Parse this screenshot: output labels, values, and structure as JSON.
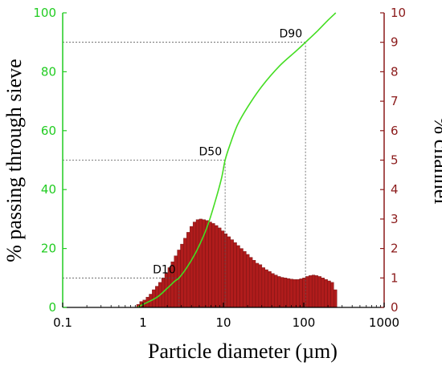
{
  "chart_data": {
    "type": "bar",
    "xlabel": "Particle diameter (µm)",
    "ylabel_left": "% passing through sieve",
    "ylabel_right": "% channel",
    "x_scale": "log",
    "xlim": [
      0.1,
      1000
    ],
    "ylim_left": [
      0,
      100
    ],
    "ylim_right": [
      0,
      10
    ],
    "x_ticks": [
      "0.1",
      "1",
      "10",
      "100",
      "1000"
    ],
    "y_left_ticks": [
      "0",
      "20",
      "40",
      "60",
      "80",
      "100"
    ],
    "y_right_ticks": [
      "0",
      "1",
      "2",
      "3",
      "4",
      "5",
      "6",
      "7",
      "8",
      "9",
      "10"
    ],
    "colors": {
      "left_axis": "#22cc22",
      "right_axis": "#8b1a1a",
      "bars": "#b01c1c",
      "bar_edge": "#6e0f0f",
      "cumulative_line": "#44dd22",
      "ref_lines": "#555555"
    },
    "series": [
      {
        "kind": "bars",
        "axis": "right",
        "x": [
          0.87,
          0.95,
          1.04,
          1.14,
          1.24,
          1.36,
          1.49,
          1.63,
          1.78,
          1.95,
          2.13,
          2.33,
          2.55,
          2.79,
          3.05,
          3.34,
          3.65,
          4.0,
          4.37,
          4.78,
          5.23,
          5.72,
          6.26,
          6.85,
          7.49,
          8.19,
          8.96,
          9.8,
          10.7,
          11.7,
          12.8,
          14.0,
          15.3,
          16.8,
          18.4,
          20.1,
          22.0,
          24.0,
          26.3,
          28.8,
          31.5,
          34.4,
          37.6,
          41.2,
          45.0,
          49.3,
          53.9,
          58.9,
          64.5,
          70.5,
          77.1,
          84.4,
          92.3,
          101,
          110,
          121,
          132,
          144,
          158,
          173,
          189,
          207,
          226,
          247
        ],
        "values": [
          0.1,
          0.2,
          0.25,
          0.35,
          0.45,
          0.6,
          0.72,
          0.85,
          1.0,
          1.15,
          1.35,
          1.55,
          1.75,
          1.95,
          2.15,
          2.35,
          2.55,
          2.75,
          2.9,
          2.98,
          3.0,
          2.98,
          2.95,
          2.9,
          2.85,
          2.78,
          2.7,
          2.6,
          2.5,
          2.4,
          2.3,
          2.2,
          2.1,
          2.0,
          1.9,
          1.8,
          1.7,
          1.6,
          1.5,
          1.45,
          1.35,
          1.28,
          1.22,
          1.15,
          1.1,
          1.05,
          1.02,
          1.0,
          0.98,
          0.96,
          0.95,
          0.95,
          0.97,
          1.0,
          1.05,
          1.08,
          1.1,
          1.08,
          1.05,
          1.0,
          0.95,
          0.9,
          0.85,
          0.6
        ]
      },
      {
        "kind": "line",
        "axis": "left",
        "x": [
          0.85,
          1.0,
          1.5,
          2.0,
          2.5,
          2.8,
          3.5,
          4.5,
          5.5,
          6.5,
          8.0,
          9.5,
          10.5,
          12.0,
          15.0,
          20.0,
          30.0,
          50.0,
          80.0,
          105.0,
          150.0,
          200.0,
          250.0
        ],
        "values": [
          0.0,
          1.0,
          3.5,
          6.5,
          9.0,
          10.0,
          13.5,
          18.5,
          23.5,
          28.5,
          36.5,
          44.0,
          50.0,
          55.0,
          62.0,
          68.0,
          75.0,
          82.0,
          87.0,
          90.0,
          94.0,
          97.5,
          100.0
        ]
      }
    ],
    "annotations": [
      {
        "label": "D10",
        "x": 2.8,
        "y": 10
      },
      {
        "label": "D50",
        "x": 10.5,
        "y": 50
      },
      {
        "label": "D90",
        "x": 105,
        "y": 90
      }
    ]
  }
}
